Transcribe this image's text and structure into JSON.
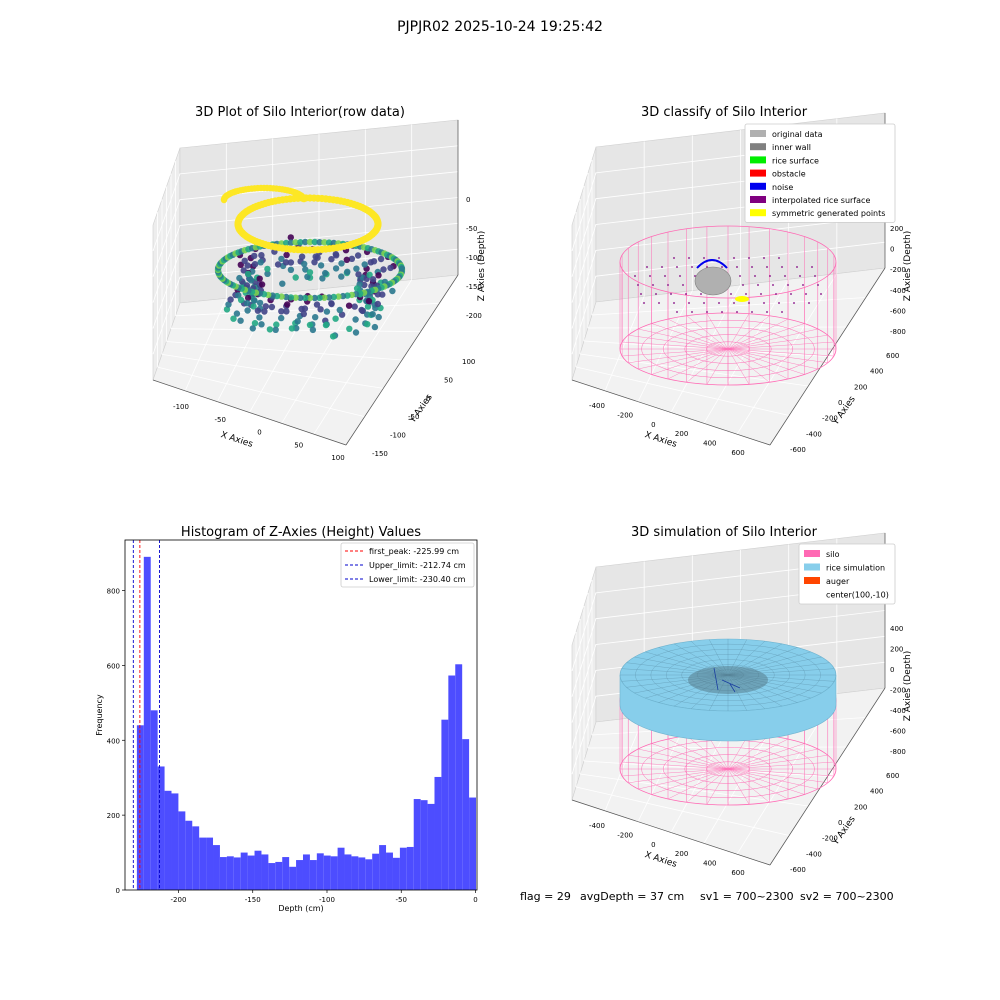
{
  "figure": {
    "suptitle": "PJPJR02 2025-10-24 19:25:42",
    "footer": {
      "flag": "flag = 29",
      "avg_depth": "avgDepth = 37 cm",
      "sv1": "sv1 = 700~2300",
      "sv2": "sv2 = 700~2300"
    }
  },
  "chart_data": [
    {
      "id": "raw",
      "type": "scatter",
      "title": "3D Plot of Silo Interior(row data)",
      "xlabel": "X Axies",
      "ylabel": "Y Axies",
      "zlabel": "Z Axies (Depth)",
      "x_ticks": [
        "-100",
        "-50",
        "0",
        "50",
        "100"
      ],
      "y_ticks": [
        "-150",
        "-100",
        "-50",
        "0",
        "50",
        "100"
      ],
      "z_ticks": [
        "0",
        "-50",
        "-100",
        "-150",
        "-200"
      ],
      "colormap": [
        "#fde725",
        "#7ad151",
        "#22a884",
        "#2a788e",
        "#414487",
        "#440154"
      ],
      "grid": true
    },
    {
      "id": "classify",
      "type": "scatter",
      "title": "3D classify of Silo Interior",
      "xlabel": "X Axies",
      "ylabel": "Y Axies",
      "zlabel": "Z Axies (Depth)",
      "x_ticks": [
        "-400",
        "-200",
        "0",
        "200",
        "400",
        "600"
      ],
      "y_ticks": [
        "-600",
        "-400",
        "-200",
        "0",
        "200",
        "400",
        "600"
      ],
      "z_ticks": [
        "200",
        "0",
        "-200",
        "-400",
        "-600",
        "-800"
      ],
      "z_top_partial": "0",
      "legend": [
        {
          "label": "original data",
          "color": "#b0b0b0"
        },
        {
          "label": "inner wall",
          "color": "#808080"
        },
        {
          "label": "rice surface",
          "color": "#00ee00"
        },
        {
          "label": "obstacle",
          "color": "#ff0000"
        },
        {
          "label": "noise",
          "color": "#0000ee"
        },
        {
          "label": "interpolated rice surface",
          "color": "#800080"
        },
        {
          "label": "symmetric generated points",
          "color": "#ffff00"
        }
      ],
      "legend_loc": "upper right",
      "silo_color": "#ff69b4",
      "grid": true
    },
    {
      "id": "hist",
      "type": "bar",
      "title": "Histogram of Z-Axies (Height) Values",
      "xlabel": "Depth (cm)",
      "ylabel": "Frequency",
      "xlim": [
        -236,
        1
      ],
      "ylim": [
        0,
        935
      ],
      "x_ticks": [
        -200,
        -150,
        -100,
        -50,
        0
      ],
      "y_ticks": [
        0,
        200,
        400,
        600,
        800
      ],
      "bar_color": "#4d4dff",
      "bin_width": 4.66,
      "bin_start": -228.0,
      "values": [
        440,
        890,
        480,
        330,
        265,
        258,
        210,
        185,
        170,
        140,
        140,
        120,
        88,
        90,
        87,
        100,
        92,
        105,
        95,
        72,
        75,
        88,
        62,
        80,
        95,
        80,
        98,
        92,
        90,
        113,
        95,
        90,
        87,
        82,
        97,
        120,
        100,
        86,
        113,
        115,
        243,
        240,
        230,
        302,
        455,
        573,
        603,
        403,
        247
      ],
      "lines": [
        {
          "label": "first_peak: -225.99 cm",
          "x": -225.99,
          "color": "#ff0000"
        },
        {
          "label": "Upper_limit: -212.74 cm",
          "x": -212.74,
          "color": "#0000cc"
        },
        {
          "label": "Lower_limit: -230.40 cm",
          "x": -230.4,
          "color": "#0000cc"
        }
      ],
      "legend_loc": "upper right"
    },
    {
      "id": "sim",
      "type": "surface",
      "title": "3D simulation of Silo Interior",
      "xlabel": "X Axies",
      "ylabel": "Y Axies",
      "zlabel": "Z Axies (Depth)",
      "x_ticks": [
        "-400",
        "-200",
        "0",
        "200",
        "400",
        "600"
      ],
      "y_ticks": [
        "-600",
        "-400",
        "-200",
        "0",
        "200",
        "400",
        "600"
      ],
      "z_ticks": [
        "400",
        "200",
        "0",
        "-200",
        "-400",
        "-600",
        "-800"
      ],
      "legend": [
        {
          "label": "silo",
          "color": "#ff69b4"
        },
        {
          "label": "rice simulation",
          "color": "#87ceeb"
        },
        {
          "label": "auger",
          "color": "#ff4500"
        },
        {
          "label": "center(100,-10)",
          "color": ""
        }
      ],
      "legend_loc": "upper right",
      "grid": true
    }
  ]
}
